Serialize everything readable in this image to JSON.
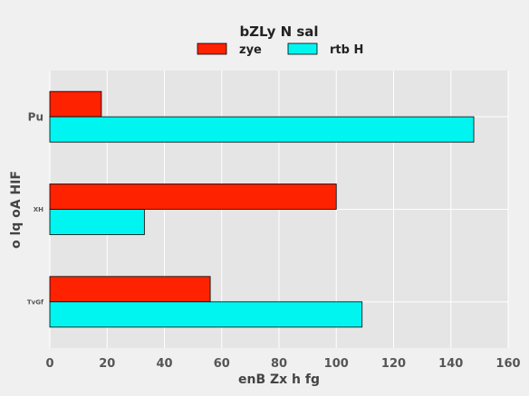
{
  "chart_data": {
    "type": "bar",
    "orientation": "horizontal",
    "title": "bZLy N sal",
    "xlabel": "enB Zx h fg",
    "ylabel": "o lq oA HIF",
    "categories": [
      "Pu",
      "XH",
      "TvGf"
    ],
    "series": [
      {
        "name": "zye",
        "values": [
          18,
          100,
          56
        ],
        "color": "#ff2200"
      },
      {
        "name": "rtb H",
        "values": [
          148,
          33,
          109
        ],
        "color": "#00f5f0"
      }
    ],
    "xlim": [
      0,
      160
    ],
    "xticks": [
      0,
      20,
      40,
      60,
      80,
      100,
      120,
      140,
      160
    ],
    "grid": true,
    "legend": "top-center",
    "plot_bg": "#e5e5e5",
    "page_bg": "#f0f0f0"
  }
}
